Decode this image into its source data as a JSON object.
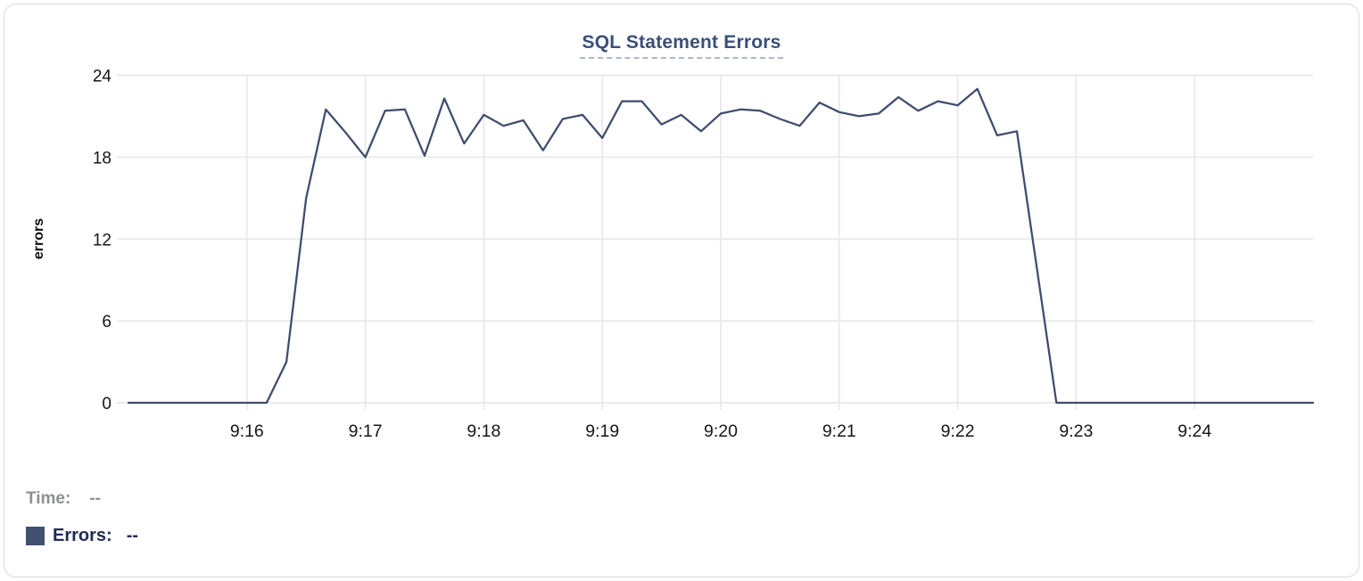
{
  "chart_data": {
    "type": "line",
    "title": "SQL Statement Errors",
    "xlabel": "",
    "ylabel": "errors",
    "x_start_label": "9:15:00",
    "x_step_seconds": 10,
    "x_domain_seconds": [
      0,
      600
    ],
    "ylim": [
      0,
      24
    ],
    "y_ticks": [
      0,
      6,
      12,
      18,
      24
    ],
    "x_ticks": [
      {
        "label": "9:16",
        "t": 60
      },
      {
        "label": "9:17",
        "t": 120
      },
      {
        "label": "9:18",
        "t": 180
      },
      {
        "label": "9:19",
        "t": 240
      },
      {
        "label": "9:20",
        "t": 300
      },
      {
        "label": "9:21",
        "t": 360
      },
      {
        "label": "9:22",
        "t": 420
      },
      {
        "label": "9:23",
        "t": 480
      },
      {
        "label": "9:24",
        "t": 540
      }
    ],
    "grid": true,
    "legend_position": "bottom-left",
    "series": [
      {
        "name": "Errors",
        "color": "#3E4C6D",
        "values": [
          0,
          0,
          0,
          0,
          0,
          0,
          0,
          0,
          3,
          15,
          21.5,
          19.8,
          18,
          21.4,
          21.5,
          18.1,
          22.3,
          19,
          21.1,
          20.3,
          20.7,
          18.5,
          20.8,
          21.1,
          19.4,
          22.1,
          22.1,
          20.4,
          21.1,
          19.9,
          21.2,
          21.5,
          21.4,
          20.8,
          20.3,
          22,
          21.3,
          21,
          21.2,
          22.4,
          21.4,
          22.1,
          21.8,
          23,
          19.6,
          19.9,
          10,
          0,
          0,
          0,
          0,
          0,
          0,
          0,
          0,
          0,
          0,
          0,
          0,
          0,
          0
        ]
      }
    ]
  },
  "colors": {
    "title": "#3A5078",
    "title_underline": "#ABB7C8",
    "grid": "#EBEBEB",
    "tick_label": "#161616",
    "axis_title": "#0C0C0C",
    "line": "#3E4C6D",
    "swatch": "#41506E",
    "muted_legend": "#8E9093",
    "strong_legend": "#202B55",
    "card_border": "#D8DADD"
  },
  "legend": {
    "time_label": "Time:",
    "time_value": "--",
    "errors_label": "Errors:",
    "errors_value": "--"
  }
}
